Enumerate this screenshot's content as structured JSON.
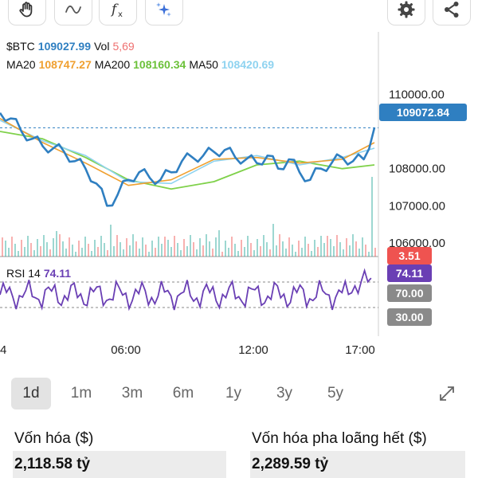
{
  "toolbar": {
    "items": [
      {
        "name": "hand-icon"
      },
      {
        "name": "wave-icon"
      },
      {
        "name": "fx-icon"
      },
      {
        "name": "sparkles-icon"
      },
      {
        "name": "gear-icon"
      },
      {
        "name": "share-icon"
      }
    ]
  },
  "legend": {
    "symbol": "$BTC",
    "price": "109027.99",
    "vol_label": "Vol",
    "vol_value": "5,69",
    "ma20_label": "MA20",
    "ma20_value": "108747.27",
    "ma200_label": "MA200",
    "ma200_value": "108160.34",
    "ma50_label": "MA50",
    "ma50_value": "108420.69"
  },
  "rsi": {
    "label": "RSI 14",
    "value": "74.11",
    "tag_value": "74.11",
    "upper_level": "70.00",
    "lower_level": "30.00"
  },
  "volume_tag": "3.51",
  "current_price_tag": "109072.84",
  "colors": {
    "accent_blue": "#2f7fc1",
    "ma20": "#f0a030",
    "ma200": "#7fd14a",
    "ma50": "#8fd3f0",
    "rsi_line": "#6a3fb4",
    "vol_red": "#ef5350",
    "vol_green": "#26a69a"
  },
  "chart_data": {
    "type": "line",
    "ylim": [
      106000,
      110500
    ],
    "y_ticks": [
      "110000.00",
      "108000.00",
      "107000.00",
      "106000.00"
    ],
    "x_ticks": [
      "4",
      "06:00",
      "12:00",
      "17:00"
    ],
    "series": [
      {
        "name": "$BTC",
        "x": [
          0,
          0.5,
          1,
          1.5,
          2,
          2.5,
          3,
          3.5,
          4,
          4.5,
          5,
          5.5,
          6,
          6.5,
          7,
          7.5,
          8,
          8.5,
          9,
          9.5,
          10,
          10.5,
          11,
          11.5,
          12,
          12.5,
          13,
          13.5,
          14,
          14.5,
          15,
          15.5,
          16,
          16.5,
          17,
          17.5
        ],
        "values": [
          109500,
          109350,
          109000,
          108800,
          108600,
          108550,
          108450,
          108200,
          108000,
          107600,
          107000,
          107300,
          107700,
          107900,
          107750,
          107700,
          107900,
          108200,
          108300,
          108350,
          108450,
          108500,
          108300,
          108250,
          108150,
          108350,
          108000,
          108250,
          107900,
          107700,
          108000,
          108150,
          108300,
          108200,
          108250,
          109100
        ]
      },
      {
        "name": "MA20",
        "x": [
          0,
          2,
          4,
          6,
          8,
          10,
          12,
          14,
          16,
          17.5
        ],
        "values": [
          109350,
          108700,
          108150,
          107550,
          107700,
          108250,
          108300,
          108150,
          108250,
          108700
        ]
      },
      {
        "name": "MA50",
        "x": [
          0,
          2,
          4,
          6,
          8,
          10,
          12,
          14,
          16,
          17.5
        ],
        "values": [
          109300,
          108750,
          108350,
          107650,
          107600,
          108200,
          108350,
          108100,
          108300,
          108550
        ]
      },
      {
        "name": "MA200",
        "x": [
          0,
          2,
          4,
          6,
          8,
          10,
          12,
          14,
          16,
          17.5
        ],
        "values": [
          109000,
          108800,
          108300,
          107700,
          107450,
          107650,
          108100,
          108200,
          108000,
          108100
        ]
      }
    ]
  },
  "ranges": [
    {
      "label": "1d",
      "active": true
    },
    {
      "label": "1m",
      "active": false
    },
    {
      "label": "3m",
      "active": false
    },
    {
      "label": "6m",
      "active": false
    },
    {
      "label": "1y",
      "active": false
    },
    {
      "label": "3y",
      "active": false
    },
    {
      "label": "5y",
      "active": false
    }
  ],
  "stats": {
    "market_cap_label": "Vốn hóa ($)",
    "market_cap_value": "2,118.58 tỷ",
    "fdv_label": "Vốn hóa pha loãng hết ($)",
    "fdv_value": "2,289.59 tỷ"
  }
}
